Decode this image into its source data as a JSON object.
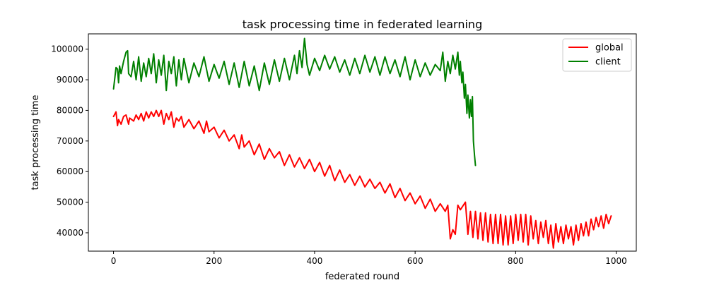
{
  "chart_data": {
    "type": "line",
    "title": "task processing time in federated learning",
    "xlabel": "federated round",
    "ylabel": "task processing time",
    "xlim": [
      -50,
      1040
    ],
    "ylim": [
      34000,
      105000
    ],
    "x_ticks": [
      0,
      200,
      400,
      600,
      800,
      1000
    ],
    "x_tick_labels": [
      "0",
      "200",
      "400",
      "600",
      "800",
      "1000"
    ],
    "y_ticks": [
      40000,
      50000,
      60000,
      70000,
      80000,
      90000,
      100000
    ],
    "y_tick_labels": [
      "40000",
      "50000",
      "60000",
      "70000",
      "80000",
      "90000",
      "100000"
    ],
    "legend_position": "top-right",
    "series": [
      {
        "name": "global",
        "color": "#ff0000",
        "x": [
          0,
          5,
          8,
          10,
          15,
          20,
          25,
          30,
          32,
          40,
          45,
          50,
          55,
          60,
          65,
          70,
          75,
          80,
          85,
          90,
          95,
          100,
          105,
          110,
          115,
          120,
          125,
          130,
          135,
          140,
          150,
          160,
          170,
          180,
          185,
          190,
          200,
          210,
          220,
          230,
          240,
          250,
          255,
          260,
          270,
          280,
          290,
          300,
          310,
          320,
          330,
          340,
          350,
          360,
          370,
          380,
          390,
          400,
          410,
          420,
          430,
          440,
          450,
          460,
          470,
          480,
          490,
          500,
          510,
          520,
          530,
          540,
          550,
          560,
          570,
          580,
          590,
          600,
          610,
          620,
          630,
          640,
          650,
          660,
          665,
          670,
          675,
          680,
          685,
          690,
          700,
          705,
          710,
          715,
          720,
          725,
          730,
          735,
          740,
          745,
          750,
          755,
          760,
          765,
          770,
          775,
          780,
          785,
          790,
          795,
          800,
          805,
          810,
          815,
          820,
          825,
          830,
          835,
          840,
          845,
          850,
          855,
          860,
          865,
          870,
          875,
          880,
          885,
          890,
          895,
          900,
          905,
          910,
          915,
          920,
          925,
          930,
          935,
          940,
          945,
          950,
          955,
          960,
          965,
          970,
          975,
          980,
          985,
          990
        ],
        "values": [
          78000,
          79500,
          75000,
          77000,
          75500,
          78000,
          78500,
          75500,
          77500,
          76500,
          78500,
          77000,
          79000,
          76500,
          79500,
          77500,
          79500,
          78000,
          80000,
          78000,
          80000,
          75500,
          79000,
          77000,
          79500,
          74500,
          77500,
          76500,
          78000,
          74500,
          77000,
          74000,
          76500,
          72500,
          76500,
          73000,
          74500,
          71000,
          73500,
          70000,
          72000,
          67500,
          72000,
          68000,
          70000,
          65500,
          69000,
          64000,
          67500,
          64500,
          66500,
          62000,
          65500,
          61500,
          64500,
          61000,
          64000,
          60000,
          63000,
          58500,
          62000,
          57000,
          60500,
          56500,
          59000,
          55500,
          58500,
          55000,
          57500,
          54500,
          56500,
          53000,
          56000,
          51500,
          54500,
          50500,
          53000,
          49500,
          52000,
          48000,
          51000,
          47000,
          49500,
          47000,
          49000,
          38000,
          41000,
          39500,
          49000,
          47500,
          50000,
          39500,
          47000,
          38500,
          47000,
          38000,
          46500,
          37500,
          46500,
          37000,
          46000,
          36500,
          46000,
          36500,
          46000,
          36000,
          45500,
          36000,
          45500,
          36500,
          46000,
          37500,
          46000,
          37000,
          46000,
          36000,
          45500,
          38000,
          44000,
          36500,
          43500,
          38500,
          44000,
          36500,
          42500,
          35000,
          43000,
          37000,
          42000,
          36500,
          42500,
          38000,
          42000,
          36000,
          42500,
          37500,
          43000,
          39000,
          43500,
          39000,
          44500,
          41000,
          45000,
          42000,
          45500,
          41500,
          46000,
          43000,
          45500
        ]
      },
      {
        "name": "client",
        "color": "#008000",
        "x": [
          0,
          5,
          8,
          10,
          12,
          15,
          20,
          25,
          28,
          30,
          35,
          40,
          45,
          50,
          55,
          60,
          65,
          70,
          75,
          80,
          85,
          90,
          95,
          100,
          105,
          110,
          115,
          120,
          125,
          130,
          135,
          140,
          150,
          160,
          170,
          180,
          190,
          200,
          210,
          220,
          230,
          240,
          250,
          260,
          270,
          280,
          290,
          300,
          310,
          320,
          330,
          340,
          350,
          360,
          365,
          370,
          375,
          380,
          385,
          390,
          400,
          410,
          420,
          430,
          440,
          450,
          460,
          470,
          480,
          490,
          500,
          510,
          520,
          530,
          540,
          550,
          560,
          570,
          580,
          590,
          600,
          610,
          620,
          630,
          640,
          650,
          655,
          660,
          665,
          670,
          675,
          680,
          685,
          688,
          690,
          693,
          695,
          698,
          700,
          703,
          705,
          708,
          710,
          712,
          714,
          716,
          718,
          720
        ],
        "values": [
          87000,
          94000,
          93500,
          89000,
          94500,
          92000,
          96000,
          99000,
          99500,
          92000,
          91000,
          96000,
          90000,
          97500,
          89500,
          95500,
          91000,
          97000,
          92000,
          98500,
          89000,
          96500,
          91500,
          98000,
          86500,
          96000,
          92000,
          97500,
          88000,
          96500,
          90000,
          97000,
          89000,
          95500,
          91000,
          97500,
          89500,
          95000,
          90500,
          96000,
          88500,
          95500,
          87500,
          96000,
          88000,
          94500,
          86500,
          95500,
          88500,
          96500,
          89500,
          97000,
          90000,
          98000,
          92000,
          99500,
          94000,
          103500,
          95000,
          91500,
          97000,
          93000,
          98000,
          93500,
          97500,
          92500,
          96500,
          91500,
          97000,
          92000,
          98000,
          92500,
          97500,
          91500,
          97500,
          92000,
          96500,
          91000,
          97500,
          90000,
          96500,
          91000,
          95500,
          91500,
          95000,
          93000,
          99000,
          89500,
          96000,
          92000,
          98000,
          93500,
          99000,
          91500,
          96000,
          89000,
          92500,
          84000,
          88500,
          79000,
          85000,
          77500,
          83500,
          78000,
          84500,
          70000,
          65500,
          62000
        ]
      }
    ]
  }
}
